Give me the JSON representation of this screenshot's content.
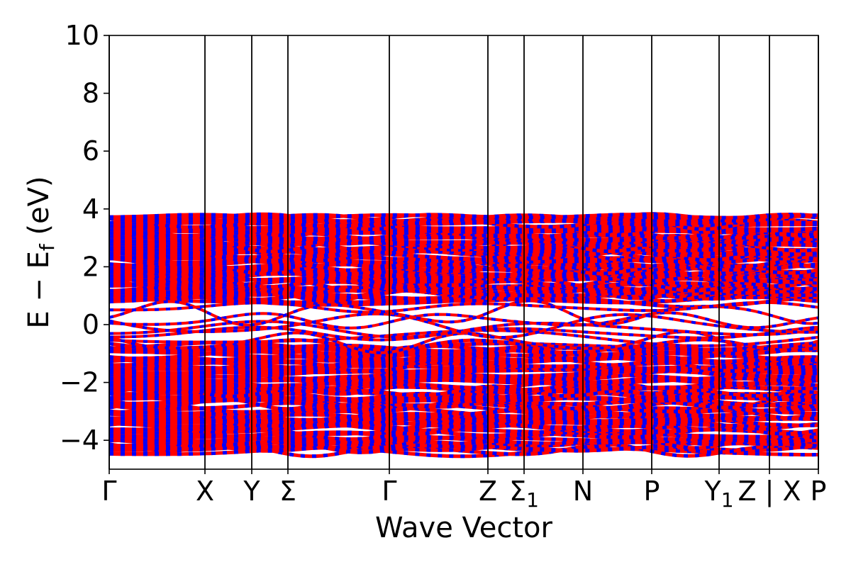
{
  "chart_data": {
    "type": "line",
    "title": "",
    "xlabel": "Wave Vector",
    "ylabel": "E − E_f (eV)",
    "ylabel_parts": {
      "main": "E − E",
      "sub": "f",
      "unit": " (eV)"
    },
    "ylim": [
      -5,
      10
    ],
    "yticks": [
      "−4",
      "−2",
      "0",
      "2",
      "4",
      "6",
      "8",
      "10"
    ],
    "ytick_values": [
      -4,
      -2,
      0,
      2,
      4,
      6,
      8,
      10
    ],
    "x_range": [
      0,
      1
    ],
    "high_symmetry_points": [
      {
        "label": "Γ",
        "sub": "",
        "x": 0.0
      },
      {
        "label": "X",
        "sub": "",
        "x": 0.135
      },
      {
        "label": "Y",
        "sub": "",
        "x": 0.201
      },
      {
        "label": "Σ",
        "sub": "",
        "x": 0.252
      },
      {
        "label": "Γ",
        "sub": "",
        "x": 0.395
      },
      {
        "label": "Z",
        "sub": "",
        "x": 0.534
      },
      {
        "label": "Σ",
        "sub": "1",
        "x": 0.585
      },
      {
        "label": "N",
        "sub": "",
        "x": 0.668
      },
      {
        "label": "P",
        "sub": "",
        "x": 0.765
      },
      {
        "label": "Y",
        "sub": "1",
        "x": 0.86
      },
      {
        "label": "Z | X",
        "sub": "",
        "x": 0.931
      },
      {
        "label": "P",
        "sub": "",
        "x": 1.0
      }
    ],
    "series": [
      {
        "name": "",
        "color": "#ff0000"
      },
      {
        "name": "",
        "color": "#0000ff"
      }
    ],
    "bands": {
      "valence_dense_range": [
        -4.4,
        -0.7
      ],
      "conduction_dense_range": [
        0.8,
        3.75
      ],
      "gap_region_bands": [
        -0.6,
        -0.45,
        -0.3,
        -0.15,
        0.0,
        0.15,
        0.4,
        0.6
      ]
    },
    "grid": false,
    "legend": "none"
  }
}
